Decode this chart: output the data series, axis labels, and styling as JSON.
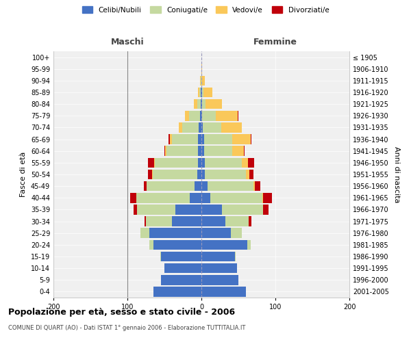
{
  "age_groups": [
    "0-4",
    "5-9",
    "10-14",
    "15-19",
    "20-24",
    "25-29",
    "30-34",
    "35-39",
    "40-44",
    "45-49",
    "50-54",
    "55-59",
    "60-64",
    "65-69",
    "70-74",
    "75-79",
    "80-84",
    "85-89",
    "90-94",
    "95-99",
    "100+"
  ],
  "birth_years": [
    "2001-2005",
    "1996-2000",
    "1991-1995",
    "1986-1990",
    "1981-1985",
    "1976-1980",
    "1971-1975",
    "1966-1970",
    "1961-1965",
    "1956-1960",
    "1951-1955",
    "1946-1950",
    "1941-1945",
    "1936-1940",
    "1931-1935",
    "1926-1930",
    "1921-1925",
    "1916-1920",
    "1911-1915",
    "1906-1910",
    "≤ 1905"
  ],
  "maschi": {
    "celibi": [
      65,
      55,
      50,
      55,
      65,
      70,
      40,
      35,
      16,
      9,
      6,
      5,
      5,
      5,
      4,
      2,
      1,
      1,
      0,
      0,
      0
    ],
    "coniugati": [
      0,
      0,
      0,
      1,
      5,
      12,
      35,
      52,
      72,
      65,
      60,
      58,
      42,
      35,
      22,
      15,
      5,
      2,
      1,
      0,
      0
    ],
    "vedovi": [
      0,
      0,
      0,
      0,
      0,
      0,
      0,
      0,
      0,
      0,
      1,
      1,
      2,
      3,
      5,
      5,
      4,
      2,
      1,
      0,
      0
    ],
    "divorziati": [
      0,
      0,
      0,
      0,
      0,
      0,
      2,
      5,
      8,
      4,
      5,
      8,
      1,
      1,
      0,
      0,
      0,
      0,
      0,
      0,
      0
    ]
  },
  "femmine": {
    "nubili": [
      60,
      50,
      48,
      45,
      62,
      40,
      32,
      28,
      12,
      8,
      5,
      5,
      4,
      4,
      2,
      1,
      1,
      1,
      0,
      0,
      0
    ],
    "coniugate": [
      0,
      0,
      0,
      1,
      5,
      15,
      32,
      55,
      70,
      62,
      55,
      50,
      38,
      38,
      25,
      18,
      5,
      2,
      0,
      0,
      0
    ],
    "vedove": [
      0,
      0,
      0,
      0,
      0,
      0,
      0,
      0,
      1,
      2,
      5,
      8,
      15,
      25,
      28,
      30,
      22,
      12,
      5,
      1,
      0
    ],
    "divorziate": [
      0,
      0,
      0,
      0,
      0,
      0,
      4,
      8,
      12,
      8,
      5,
      8,
      1,
      1,
      0,
      1,
      0,
      0,
      0,
      0,
      0
    ]
  },
  "colors": {
    "celibi_nubili": "#4472C4",
    "coniugati_e": "#C5D9A0",
    "vedovi_e": "#FAC85A",
    "divorziati_e": "#C0000A"
  },
  "title": "Popolazione per età, sesso e stato civile - 2006",
  "subtitle": "COMUNE DI QUART (AO) - Dati ISTAT 1° gennaio 2006 - Elaborazione TUTTITALIA.IT",
  "xlabel_left": "Maschi",
  "xlabel_right": "Femmine",
  "ylabel_left": "Fasce di età",
  "ylabel_right": "Anni di nascita",
  "xlim": 200,
  "bg_color": "#ffffff",
  "plot_bg_color": "#f0f0f0",
  "grid_color": "#ffffff",
  "legend_labels": [
    "Celibi/Nubili",
    "Coniugati/e",
    "Vedovi/e",
    "Divorziati/e"
  ]
}
